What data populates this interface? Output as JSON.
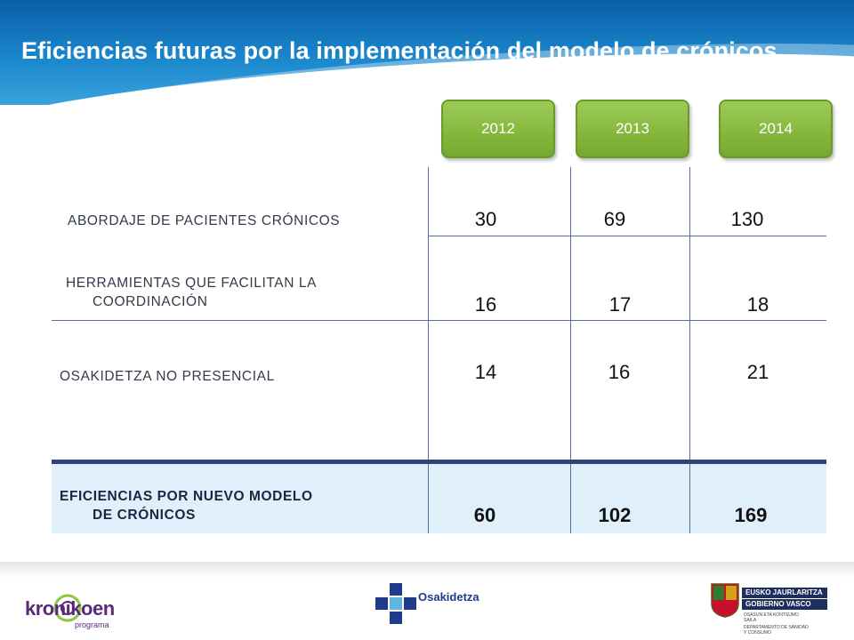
{
  "title": "Eficiencias futuras por la implementación del modelo de crónicos",
  "years": [
    "2012",
    "2013",
    "2014"
  ],
  "rows": [
    {
      "label_line1": "ABORDAJE DE PACIENTES CRÓNICOS",
      "label_line2": "",
      "values": [
        "30",
        "69",
        "130"
      ]
    },
    {
      "label_line1": "HERRAMIENTAS QUE FACILITAN LA",
      "label_line2": "COORDINACIÓN",
      "values": [
        "16",
        "17",
        "18"
      ]
    },
    {
      "label_line1": "OSAKIDETZA NO PRESENCIAL",
      "label_line2": "",
      "values": [
        "14",
        "16",
        "21"
      ]
    }
  ],
  "total": {
    "label_line1": "EFICIENCIAS POR NUEVO MODELO",
    "label_line2": "DE CRÓNICOS",
    "values": [
      "60",
      "102",
      "169"
    ]
  },
  "footer": {
    "kronikoen": {
      "name": "kronikoen",
      "sub": "programa"
    },
    "osakidetza": {
      "name": "Osakidetza"
    },
    "gobierno": {
      "line1": "EUSKO JAURLARITZA",
      "line2": "GOBIERNO VASCO",
      "small1": "OSASUN ETA KONTSUMO",
      "small2": "SAILA",
      "small3": "DEPARTAMENTO DE SANIDAD",
      "small4": "Y CONSUMO"
    }
  },
  "colors": {
    "header": "#1a86cc",
    "tab_green": "#85b63c",
    "total_bg": "#dff0fb",
    "rule": "#2e4677"
  }
}
